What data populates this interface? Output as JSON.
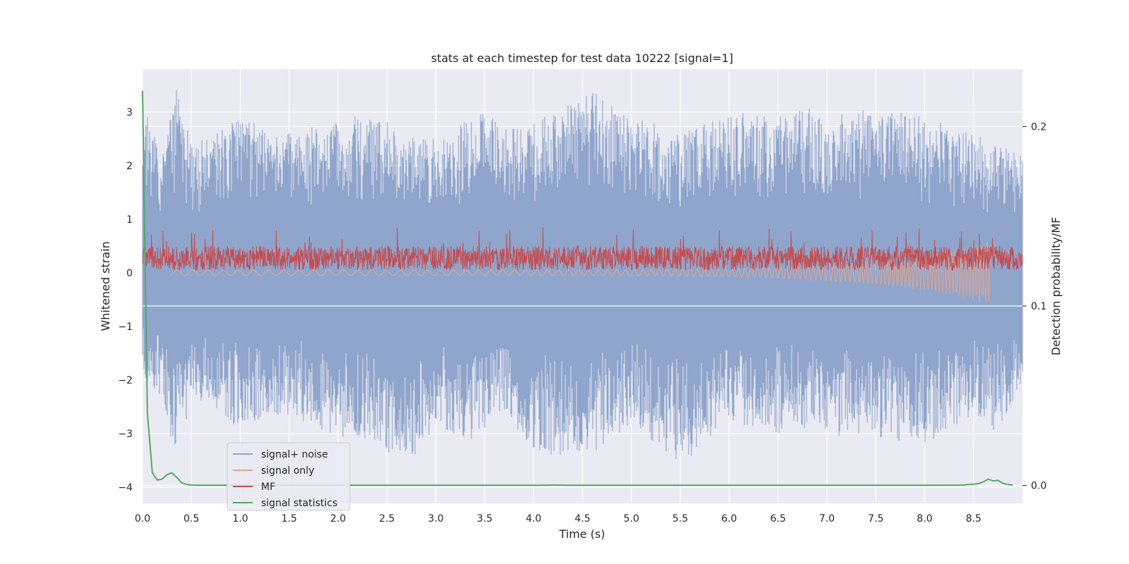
{
  "chart_data": {
    "type": "line",
    "title": "stats at each timestep for test data 10222 [signal=1]",
    "xlabel": "Time (s)",
    "ylabel_left": "Whitened strain",
    "ylabel_right": "Detection probability/MF",
    "xlim": [
      0.0,
      9.0
    ],
    "ylim_left": [
      -4.3,
      3.8
    ],
    "ylim_right": [
      -0.01,
      0.232
    ],
    "xticks": [
      "0.0",
      "0.5",
      "1.0",
      "1.5",
      "2.0",
      "2.5",
      "3.0",
      "3.5",
      "4.0",
      "4.5",
      "5.0",
      "5.5",
      "6.0",
      "6.5",
      "7.0",
      "7.5",
      "8.0",
      "8.5"
    ],
    "yticks_left": [
      "3",
      "2",
      "1",
      "0",
      "−1",
      "−2",
      "−3",
      "−4"
    ],
    "yticks_right": [
      "0.2",
      "0.1",
      "0.0"
    ],
    "grid": true,
    "legend_position": "lower-left",
    "series": [
      {
        "name": "signal+ noise",
        "color": "#8fa5cc",
        "description": "noisy whitened strain, roughly within -3.6 to 3.4"
      },
      {
        "name": "signal only",
        "color": "#e8a58d",
        "description": "chirp signal growing toward merger near t=8.7 s"
      },
      {
        "name": "MF",
        "color": "#c44e52",
        "description": "matched filter output, values about 0.0 to 0.8 on strain axis"
      },
      {
        "name": "signal statistics",
        "color": "#55a868",
        "x": [
          0.0,
          0.05,
          0.1,
          0.15,
          0.2,
          0.25,
          0.3,
          0.35,
          0.4,
          0.45,
          0.5,
          0.6,
          0.8,
          1.0,
          2.0,
          3.0,
          4.0,
          4.2,
          4.4,
          5.0,
          6.0,
          7.0,
          8.0,
          8.4,
          8.55,
          8.6,
          8.65,
          8.7,
          8.75,
          8.8,
          8.85,
          8.9
        ],
        "values": [
          0.22,
          0.04,
          0.007,
          0.003,
          0.0035,
          0.006,
          0.007,
          0.0045,
          0.0015,
          0.0005,
          0.0002,
          0.0001,
          0.0001,
          0.0001,
          0.0001,
          0.0001,
          0.0001,
          0.0002,
          0.0001,
          0.0001,
          0.0001,
          0.0001,
          0.0001,
          0.0002,
          0.001,
          0.002,
          0.0035,
          0.0025,
          0.0028,
          0.0012,
          0.0005,
          0.0002
        ]
      }
    ],
    "noise_envelope": {
      "x": [
        0.0,
        0.2,
        0.35,
        0.5,
        1.0,
        1.5,
        2.0,
        2.4,
        2.7,
        3.0,
        3.5,
        3.7,
        4.0,
        4.6,
        5.0,
        5.5,
        6.0,
        6.5,
        6.8,
        7.0,
        7.5,
        8.0,
        8.5,
        8.7,
        8.9
      ],
      "upper": [
        3.2,
        2.2,
        3.45,
        2.4,
        2.9,
        2.6,
        2.9,
        3.0,
        2.6,
        2.5,
        3.05,
        2.7,
        2.8,
        3.4,
        2.9,
        2.7,
        3.0,
        2.9,
        3.3,
        2.9,
        3.1,
        2.9,
        2.6,
        2.4,
        2.3
      ],
      "lower": [
        -2.0,
        -2.3,
        -3.6,
        -2.4,
        -2.9,
        -2.7,
        -3.1,
        -3.2,
        -3.6,
        -2.9,
        -3.2,
        -2.6,
        -3.4,
        -3.4,
        -2.8,
        -3.6,
        -2.8,
        -3.0,
        -2.9,
        -3.1,
        -3.1,
        -3.2,
        -2.7,
        -3.0,
        -2.5
      ]
    },
    "legend": [
      {
        "label": "signal+ noise",
        "color": "#8fa5cc"
      },
      {
        "label": "signal only",
        "color": "#e8a58d"
      },
      {
        "label": "MF",
        "color": "#c44e52"
      },
      {
        "label": "signal statistics",
        "color": "#55a868"
      }
    ]
  }
}
